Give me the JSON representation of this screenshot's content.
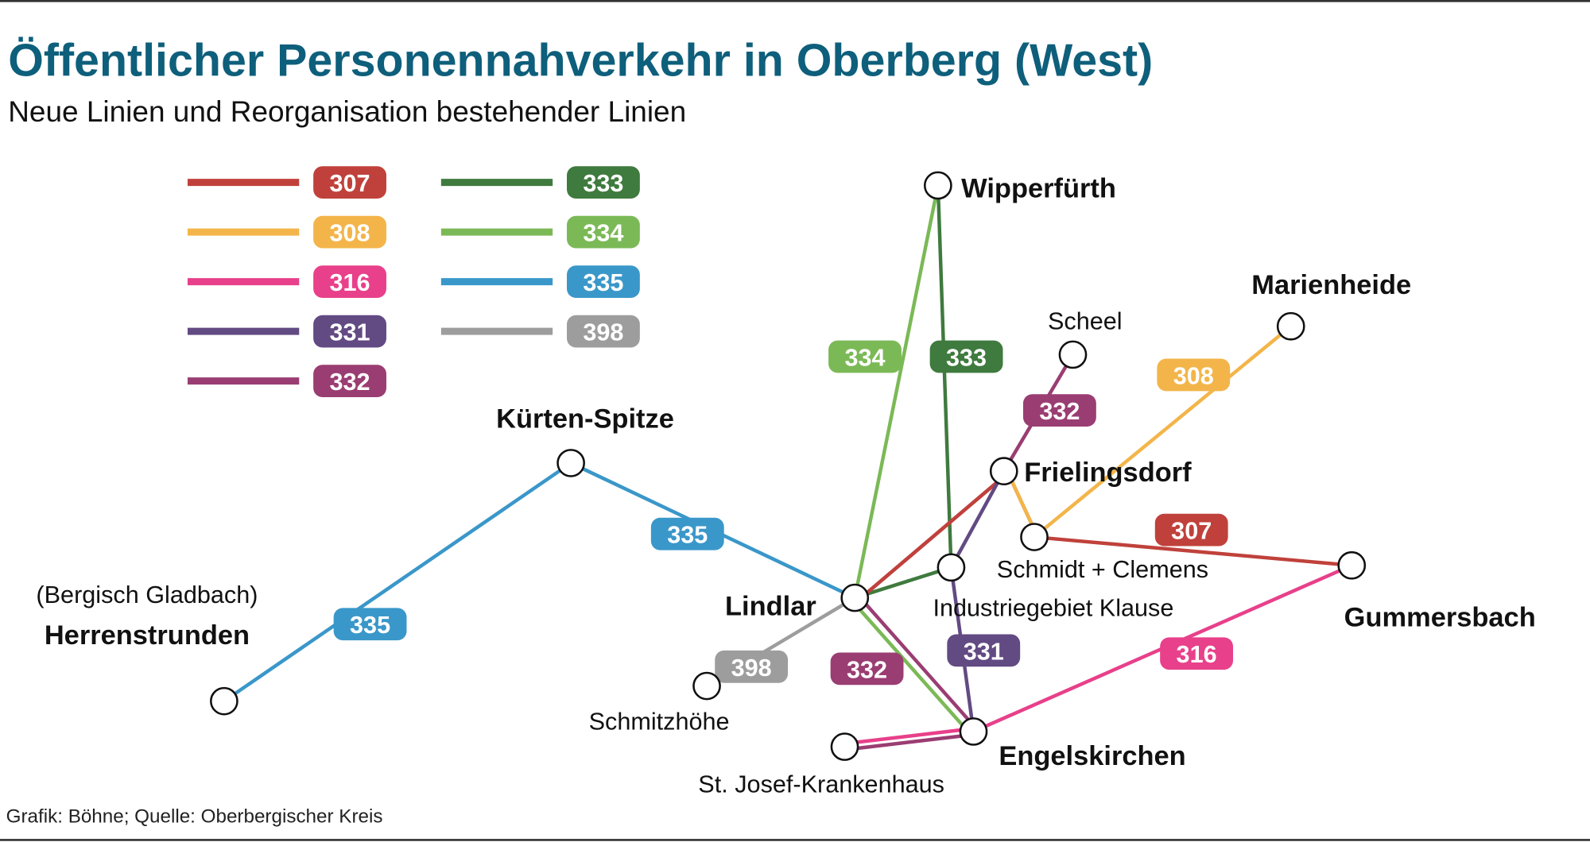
{
  "header": {
    "title": "Öffentlicher Personennahverkehr in Oberberg (West)",
    "subtitle": "Neue Linien und Reorganisation bestehender Linien"
  },
  "footer": "Grafik: Böhne; Quelle: Oberbergischer Kreis",
  "legend": [
    {
      "line": "307",
      "color": "#c0413b"
    },
    {
      "line": "308",
      "color": "#f3b54a"
    },
    {
      "line": "316",
      "color": "#e8408a"
    },
    {
      "line": "331",
      "color": "#624a83"
    },
    {
      "line": "332",
      "color": "#9a3d72"
    },
    {
      "line": "333",
      "color": "#3f7a3e"
    },
    {
      "line": "334",
      "color": "#7bb956"
    },
    {
      "line": "335",
      "color": "#3a97c9"
    },
    {
      "line": "398",
      "color": "#9d9d9d"
    }
  ],
  "stations": {
    "wipperfuerth": {
      "name": "Wipperfürth",
      "major": true
    },
    "scheel": {
      "name": "Scheel",
      "major": false
    },
    "marienheide": {
      "name": "Marienheide",
      "major": true
    },
    "frielingsdorf": {
      "name": "Frielingsdorf",
      "major": true
    },
    "schmidt": {
      "name": "Schmidt + Clemens",
      "major": false
    },
    "klause": {
      "name": "Industriegebiet Klause",
      "major": false
    },
    "gummersbach": {
      "name": "Gummersbach",
      "major": true
    },
    "lindlar": {
      "name": "Lindlar",
      "major": true
    },
    "kuerten": {
      "name": "Kürten-Spitze",
      "major": true
    },
    "herrenstrunden": {
      "name": "Herrenstrunden",
      "prefix": "(Bergisch Gladbach)",
      "major": true
    },
    "schmitzhoehe": {
      "name": "Schmitzhöhe",
      "major": false
    },
    "stjosef": {
      "name": "St. Josef-Krankenhaus",
      "major": false
    },
    "engelskirchen": {
      "name": "Engelskirchen",
      "major": true
    }
  },
  "lines": [
    {
      "line": "335",
      "color": "#3a97c9",
      "route": [
        [
          "herrenstrunden",
          "kuerten",
          "lindlar"
        ]
      ]
    },
    {
      "line": "334",
      "color": "#7bb956",
      "route": [
        [
          "wipperfuerth",
          "lindlar",
          "engelskirchen"
        ]
      ]
    },
    {
      "line": "333",
      "color": "#3f7a3e",
      "route": [
        [
          "wipperfuerth",
          "klause",
          "lindlar"
        ]
      ]
    },
    {
      "line": "332",
      "color": "#9a3d72",
      "route": [
        [
          "scheel",
          "frielingsdorf",
          "lindlar",
          "engelskirchen",
          "stjosef"
        ]
      ]
    },
    {
      "line": "307",
      "color": "#c0413b",
      "route": [
        [
          "lindlar",
          "frielingsdorf",
          "schmidt",
          "gummersbach"
        ]
      ]
    },
    {
      "line": "308",
      "color": "#f3b54a",
      "route": [
        [
          "marienheide",
          "schmidt",
          "frielingsdorf"
        ]
      ]
    },
    {
      "line": "331",
      "color": "#624a83",
      "route": [
        [
          "frielingsdorf",
          "klause",
          "engelskirchen"
        ]
      ]
    },
    {
      "line": "316",
      "color": "#e8408a",
      "route": [
        [
          "gummersbach",
          "engelskirchen",
          "stjosef"
        ]
      ]
    },
    {
      "line": "398",
      "color": "#9d9d9d",
      "route": [
        [
          "schmitzhoehe",
          "lindlar"
        ]
      ]
    }
  ]
}
